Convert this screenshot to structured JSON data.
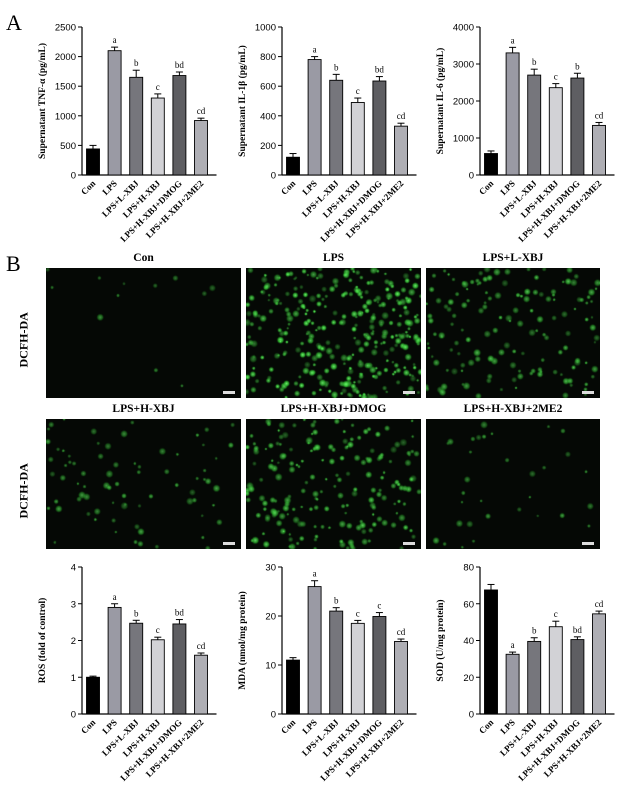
{
  "figure": {
    "panel_a_letter": "A",
    "panel_b_letter": "B"
  },
  "colors": {
    "bar_fills": [
      "#000000",
      "#9a9aa4",
      "#76767c",
      "#d2d2d6",
      "#5e5e62",
      "#aeaeb4"
    ],
    "fluorescence": "#3ed43e",
    "image_background": "#050805"
  },
  "microscopy": {
    "row_label": "DCFH-DA",
    "panels": [
      {
        "title": "Con",
        "cell_density": 0.02
      },
      {
        "title": "LPS",
        "cell_density": 1.0
      },
      {
        "title": "LPS+L-XBJ",
        "cell_density": 0.45
      },
      {
        "title": "LPS+H-XBJ",
        "cell_density": 0.22
      },
      {
        "title": "LPS+H-XBJ+DMOG",
        "cell_density": 0.6
      },
      {
        "title": "LPS+H-XBJ+2ME2",
        "cell_density": 0.08
      }
    ]
  },
  "chart_data": [
    {
      "type": "bar",
      "categories": [
        "Con",
        "LPS",
        "LPS+L-XBJ",
        "LPS+H-XBJ",
        "LPS+H-XBJ+DMOG",
        "LPS+H-XBJ+2ME2"
      ],
      "values": [
        440,
        2100,
        1650,
        1300,
        1680,
        920
      ],
      "errors": [
        60,
        60,
        120,
        70,
        60,
        40
      ],
      "labels": [
        "",
        "a",
        "b",
        "c",
        "bd",
        "cd"
      ],
      "ylabel": "Supernatant TNF-α (pg/mL)",
      "ylim": [
        0,
        2500
      ],
      "yticks": [
        0,
        500,
        1000,
        1500,
        2000,
        2500
      ]
    },
    {
      "type": "bar",
      "categories": [
        "Con",
        "LPS",
        "LPS+L-XBJ",
        "LPS+H-XBJ",
        "LPS+H-XBJ+DMOG",
        "LPS+H-XBJ+2ME2"
      ],
      "values": [
        120,
        780,
        640,
        490,
        635,
        330
      ],
      "errors": [
        25,
        20,
        40,
        30,
        30,
        20
      ],
      "labels": [
        "",
        "a",
        "b",
        "c",
        "bd",
        "cd"
      ],
      "ylabel": "Supernatant IL-1β (pg/mL)",
      "ylim": [
        0,
        1000
      ],
      "yticks": [
        0,
        200,
        400,
        600,
        800,
        1000
      ]
    },
    {
      "type": "bar",
      "categories": [
        "Con",
        "LPS",
        "LPS+L-XBJ",
        "LPS+H-XBJ",
        "LPS+H-XBJ+DMOG",
        "LPS+H-XBJ+2ME2"
      ],
      "values": [
        580,
        3300,
        2700,
        2360,
        2620,
        1340
      ],
      "errors": [
        70,
        150,
        160,
        110,
        130,
        80
      ],
      "labels": [
        "",
        "a",
        "b",
        "c",
        "b",
        "cd"
      ],
      "ylabel": "Supernatant IL-6 (pg/mL)",
      "ylim": [
        0,
        4000
      ],
      "yticks": [
        0,
        1000,
        2000,
        3000,
        4000
      ]
    },
    {
      "type": "bar",
      "categories": [
        "Con",
        "LPS",
        "LPS+L-XBJ",
        "LPS+H-XBJ",
        "LPS+H-XBJ+DMOG",
        "LPS+H-XBJ+2ME2"
      ],
      "values": [
        1.0,
        2.9,
        2.47,
        2.02,
        2.45,
        1.6
      ],
      "errors": [
        0.03,
        0.1,
        0.08,
        0.07,
        0.12,
        0.06
      ],
      "labels": [
        "",
        "a",
        "b",
        "c",
        "bd",
        "cd"
      ],
      "ylabel": "ROS (fold of control)",
      "ylim": [
        0,
        4
      ],
      "yticks": [
        0,
        1,
        2,
        3,
        4
      ]
    },
    {
      "type": "bar",
      "categories": [
        "Con",
        "LPS",
        "LPS+L-XBJ",
        "LPS+H-XBJ",
        "LPS+H-XBJ+DMOG",
        "LPS+H-XBJ+2ME2"
      ],
      "values": [
        11.0,
        26.0,
        21.0,
        18.5,
        19.9,
        14.8
      ],
      "errors": [
        0.5,
        1.2,
        0.7,
        0.6,
        0.8,
        0.5
      ],
      "labels": [
        "",
        "a",
        "b",
        "c",
        "c",
        "cd"
      ],
      "ylabel": "MDA (nmol/mg protein)",
      "ylim": [
        0,
        30
      ],
      "yticks": [
        0,
        10,
        20,
        30
      ]
    },
    {
      "type": "bar",
      "categories": [
        "Con",
        "LPS",
        "LPS+L-XBJ",
        "LPS+H-XBJ",
        "LPS+H-XBJ+DMOG",
        "LPS+H-XBJ+2ME2"
      ],
      "values": [
        67.5,
        32.5,
        39.5,
        47.5,
        40.5,
        54.5
      ],
      "errors": [
        3.0,
        1.2,
        2.0,
        3.0,
        1.5,
        1.5
      ],
      "labels": [
        "",
        "a",
        "b",
        "c",
        "bd",
        "cd"
      ],
      "ylabel": "SOD (U/mg protein)",
      "ylim": [
        0,
        80
      ],
      "yticks": [
        0,
        20,
        40,
        60,
        80
      ]
    }
  ]
}
